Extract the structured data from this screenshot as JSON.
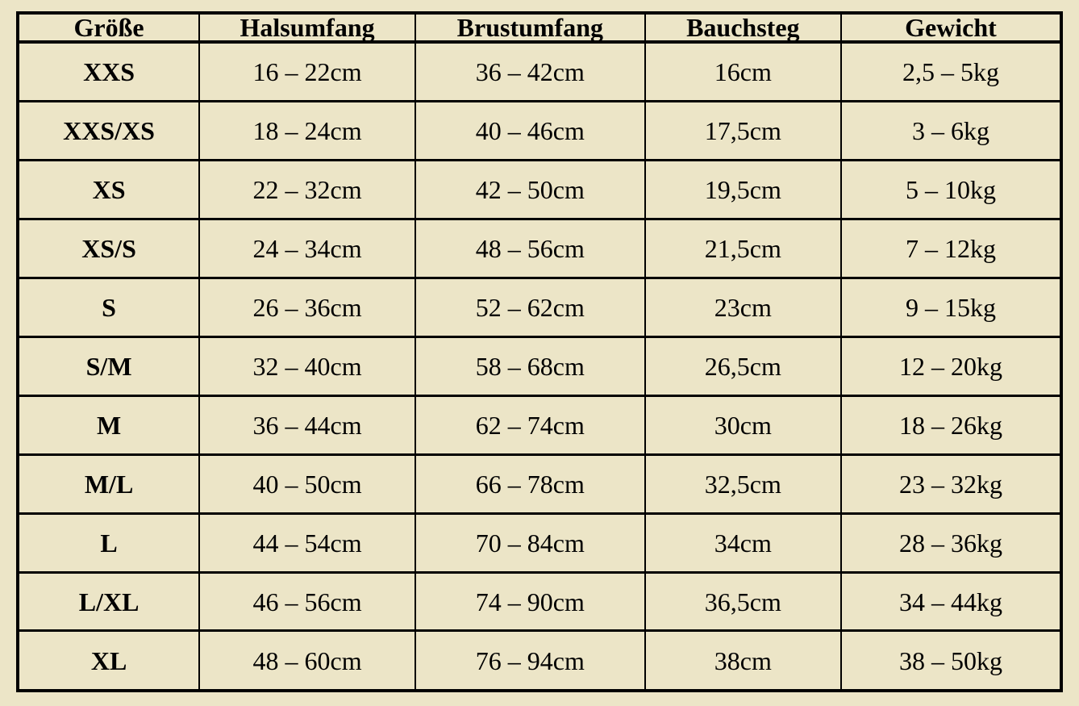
{
  "colors": {
    "background": "#ece5c7",
    "grid_border": "#000000",
    "text": "#000000"
  },
  "table": {
    "headers": [
      "Größe",
      "Halsumfang",
      "Brustumfang",
      "Bauchsteg",
      "Gewicht"
    ],
    "rows": [
      [
        "XXS",
        "16 – 22cm",
        "36 – 42cm",
        "16cm",
        "2,5 – 5kg"
      ],
      [
        "XXS/XS",
        "18 – 24cm",
        "40 – 46cm",
        "17,5cm",
        "3 – 6kg"
      ],
      [
        "XS",
        "22 – 32cm",
        "42 – 50cm",
        "19,5cm",
        "5 – 10kg"
      ],
      [
        "XS/S",
        "24 – 34cm",
        "48 – 56cm",
        "21,5cm",
        "7 – 12kg"
      ],
      [
        "S",
        "26 – 36cm",
        "52 – 62cm",
        "23cm",
        "9 – 15kg"
      ],
      [
        "S/M",
        "32 – 40cm",
        "58 – 68cm",
        "26,5cm",
        "12 – 20kg"
      ],
      [
        "M",
        "36 – 44cm",
        "62 – 74cm",
        "30cm",
        "18 – 26kg"
      ],
      [
        "M/L",
        "40 – 50cm",
        "66 – 78cm",
        "32,5cm",
        "23 – 32kg"
      ],
      [
        "L",
        "44 – 54cm",
        "70 – 84cm",
        "34cm",
        "28 – 36kg"
      ],
      [
        "L/XL",
        "46 – 56cm",
        "74 – 90cm",
        "36,5cm",
        "34 – 44kg"
      ],
      [
        "XL",
        "48 – 60cm",
        "76 – 94cm",
        "38cm",
        "38 – 50kg"
      ]
    ]
  }
}
